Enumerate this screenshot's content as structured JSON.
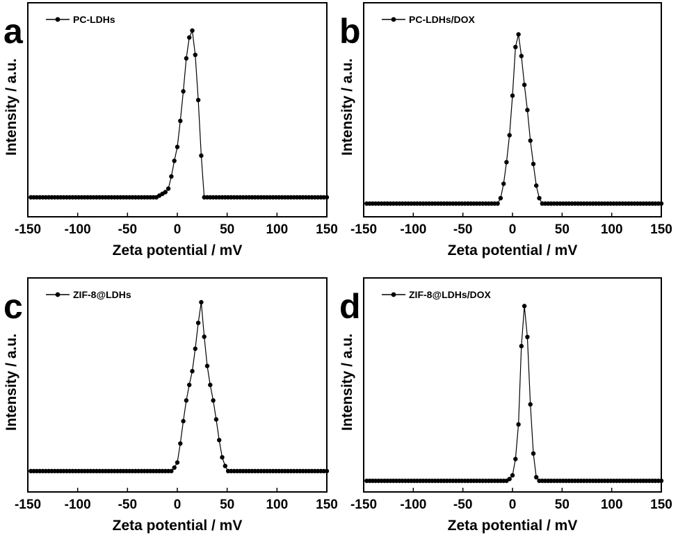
{
  "chart_data": [
    {
      "panel": "a",
      "type": "line",
      "xlabel": "Zeta potential / mV",
      "ylabel": "Intensity / a.u.",
      "xlim": [
        -150,
        150
      ],
      "xticks": [
        "-150",
        "-100",
        "-50",
        "0",
        "50",
        "100",
        "150"
      ],
      "legend_placement": "top-left",
      "series": [
        {
          "name": "PC-LDHs",
          "x": [
            -147,
            -144,
            -141,
            -138,
            -135,
            -132,
            -129,
            -126,
            -123,
            -120,
            -117,
            -114,
            -111,
            -108,
            -105,
            -102,
            -99,
            -96,
            -93,
            -90,
            -87,
            -84,
            -81,
            -78,
            -75,
            -72,
            -69,
            -66,
            -63,
            -60,
            -57,
            -54,
            -51,
            -48,
            -45,
            -42,
            -39,
            -36,
            -33,
            -30,
            -27,
            -24,
            -21,
            -18,
            -15,
            -12,
            -9,
            -6,
            -3,
            0,
            3,
            6,
            9,
            12,
            15,
            18,
            21,
            24,
            27,
            30,
            33,
            36,
            39,
            42,
            45,
            48,
            51,
            54,
            57,
            60,
            63,
            66,
            69,
            72,
            75,
            78,
            81,
            84,
            87,
            90,
            93,
            96,
            99,
            102,
            105,
            108,
            111,
            114,
            117,
            120,
            123,
            126,
            129,
            132,
            135,
            138,
            141,
            144,
            147,
            150
          ],
          "y": [
            0,
            0,
            0,
            0,
            0,
            0,
            0,
            0,
            0,
            0,
            0,
            0,
            0,
            0,
            0,
            0,
            0,
            0,
            0,
            0,
            0,
            0,
            0,
            0,
            0,
            0,
            0,
            0,
            0,
            0,
            0,
            0,
            0,
            0,
            0,
            0,
            0,
            0,
            0,
            0,
            0,
            0,
            0,
            0.01,
            0.02,
            0.03,
            0.05,
            0.12,
            0.21,
            0.29,
            0.44,
            0.61,
            0.8,
            0.92,
            0.96,
            0.82,
            0.56,
            0.24,
            0,
            0,
            0,
            0,
            0,
            0,
            0,
            0,
            0,
            0,
            0,
            0,
            0,
            0,
            0,
            0,
            0,
            0,
            0,
            0,
            0,
            0,
            0,
            0,
            0,
            0,
            0,
            0,
            0,
            0,
            0,
            0,
            0,
            0,
            0,
            0,
            0,
            0,
            0,
            0,
            0,
            0
          ]
        }
      ]
    },
    {
      "panel": "b",
      "type": "line",
      "xlabel": "Zeta potential / mV",
      "ylabel": "Intensity / a.u.",
      "xlim": [
        -150,
        150
      ],
      "xticks": [
        "-150",
        "-100",
        "-50",
        "0",
        "50",
        "100",
        "150"
      ],
      "legend_placement": "top-left",
      "series": [
        {
          "name": "PC-LDHs/DOX",
          "x": [
            -147,
            -144,
            -141,
            -138,
            -135,
            -132,
            -129,
            -126,
            -123,
            -120,
            -117,
            -114,
            -111,
            -108,
            -105,
            -102,
            -99,
            -96,
            -93,
            -90,
            -87,
            -84,
            -81,
            -78,
            -75,
            -72,
            -69,
            -66,
            -63,
            -60,
            -57,
            -54,
            -51,
            -48,
            -45,
            -42,
            -39,
            -36,
            -33,
            -30,
            -27,
            -24,
            -21,
            -18,
            -15,
            -12,
            -9,
            -6,
            -3,
            0,
            3,
            6,
            9,
            12,
            15,
            18,
            21,
            24,
            27,
            30,
            33,
            36,
            39,
            42,
            45,
            48,
            51,
            54,
            57,
            60,
            63,
            66,
            69,
            72,
            75,
            78,
            81,
            84,
            87,
            90,
            93,
            96,
            99,
            102,
            105,
            108,
            111,
            114,
            117,
            120,
            123,
            126,
            129,
            132,
            135,
            138,
            141,
            144,
            147,
            150
          ],
          "y": [
            0,
            0,
            0,
            0,
            0,
            0,
            0,
            0,
            0,
            0,
            0,
            0,
            0,
            0,
            0,
            0,
            0,
            0,
            0,
            0,
            0,
            0,
            0,
            0,
            0,
            0,
            0,
            0,
            0,
            0,
            0,
            0,
            0,
            0,
            0,
            0,
            0,
            0,
            0,
            0,
            0,
            0,
            0,
            0,
            0,
            0.03,
            0.11,
            0.23,
            0.38,
            0.6,
            0.87,
            0.94,
            0.82,
            0.66,
            0.52,
            0.35,
            0.22,
            0.1,
            0.03,
            0,
            0,
            0,
            0,
            0,
            0,
            0,
            0,
            0,
            0,
            0,
            0,
            0,
            0,
            0,
            0,
            0,
            0,
            0,
            0,
            0,
            0,
            0,
            0,
            0,
            0,
            0,
            0,
            0,
            0,
            0,
            0,
            0,
            0,
            0,
            0,
            0,
            0,
            0,
            0,
            0
          ]
        }
      ]
    },
    {
      "panel": "c",
      "type": "line",
      "xlabel": "Zeta potential / mV",
      "ylabel": "Intensity / a.u.",
      "xlim": [
        -150,
        150
      ],
      "xticks": [
        "-150",
        "-100",
        "-50",
        "0",
        "50",
        "100",
        "150"
      ],
      "legend_placement": "top-left",
      "series": [
        {
          "name": "ZIF-8@LDHs",
          "x": [
            -147,
            -144,
            -141,
            -138,
            -135,
            -132,
            -129,
            -126,
            -123,
            -120,
            -117,
            -114,
            -111,
            -108,
            -105,
            -102,
            -99,
            -96,
            -93,
            -90,
            -87,
            -84,
            -81,
            -78,
            -75,
            -72,
            -69,
            -66,
            -63,
            -60,
            -57,
            -54,
            -51,
            -48,
            -45,
            -42,
            -39,
            -36,
            -33,
            -30,
            -27,
            -24,
            -21,
            -18,
            -15,
            -12,
            -9,
            -6,
            -3,
            0,
            3,
            6,
            9,
            12,
            15,
            18,
            21,
            24,
            27,
            30,
            33,
            36,
            39,
            42,
            45,
            48,
            51,
            54,
            57,
            60,
            63,
            66,
            69,
            72,
            75,
            78,
            81,
            84,
            87,
            90,
            93,
            96,
            99,
            102,
            105,
            108,
            111,
            114,
            117,
            120,
            123,
            126,
            129,
            132,
            135,
            138,
            141,
            144,
            147,
            150
          ],
          "y": [
            0,
            0,
            0,
            0,
            0,
            0,
            0,
            0,
            0,
            0,
            0,
            0,
            0,
            0,
            0,
            0,
            0,
            0,
            0,
            0,
            0,
            0,
            0,
            0,
            0,
            0,
            0,
            0,
            0,
            0,
            0,
            0,
            0,
            0,
            0,
            0,
            0,
            0,
            0,
            0,
            0,
            0,
            0,
            0,
            0,
            0,
            0,
            0,
            0.02,
            0.05,
            0.16,
            0.29,
            0.41,
            0.5,
            0.58,
            0.71,
            0.86,
            0.98,
            0.78,
            0.61,
            0.5,
            0.41,
            0.3,
            0.18,
            0.08,
            0.03,
            0,
            0,
            0,
            0,
            0,
            0,
            0,
            0,
            0,
            0,
            0,
            0,
            0,
            0,
            0,
            0,
            0,
            0,
            0,
            0,
            0,
            0,
            0,
            0,
            0,
            0,
            0,
            0,
            0,
            0,
            0,
            0,
            0,
            0
          ]
        }
      ]
    },
    {
      "panel": "d",
      "type": "line",
      "xlabel": "Zeta potential / mV",
      "ylabel": "Intensity / a.u.",
      "xlim": [
        -150,
        150
      ],
      "xticks": [
        "-150",
        "-100",
        "-50",
        "0",
        "50",
        "100",
        "150"
      ],
      "legend_placement": "top-left",
      "series": [
        {
          "name": "ZIF-8@LDHs/DOX",
          "x": [
            -147,
            -144,
            -141,
            -138,
            -135,
            -132,
            -129,
            -126,
            -123,
            -120,
            -117,
            -114,
            -111,
            -108,
            -105,
            -102,
            -99,
            -96,
            -93,
            -90,
            -87,
            -84,
            -81,
            -78,
            -75,
            -72,
            -69,
            -66,
            -63,
            -60,
            -57,
            -54,
            -51,
            -48,
            -45,
            -42,
            -39,
            -36,
            -33,
            -30,
            -27,
            -24,
            -21,
            -18,
            -15,
            -12,
            -9,
            -6,
            -3,
            0,
            3,
            6,
            9,
            12,
            15,
            18,
            21,
            24,
            27,
            30,
            33,
            36,
            39,
            42,
            45,
            48,
            51,
            54,
            57,
            60,
            63,
            66,
            69,
            72,
            75,
            78,
            81,
            84,
            87,
            90,
            93,
            96,
            99,
            102,
            105,
            108,
            111,
            114,
            117,
            120,
            123,
            126,
            129,
            132,
            135,
            138,
            141,
            144,
            147,
            150
          ],
          "y": [
            0,
            0,
            0,
            0,
            0,
            0,
            0,
            0,
            0,
            0,
            0,
            0,
            0,
            0,
            0,
            0,
            0,
            0,
            0,
            0,
            0,
            0,
            0,
            0,
            0,
            0,
            0,
            0,
            0,
            0,
            0,
            0,
            0,
            0,
            0,
            0,
            0,
            0,
            0,
            0,
            0,
            0,
            0,
            0,
            0,
            0,
            0,
            0,
            0.01,
            0.03,
            0.12,
            0.31,
            0.74,
            0.96,
            0.79,
            0.42,
            0.15,
            0.02,
            0,
            0,
            0,
            0,
            0,
            0,
            0,
            0,
            0,
            0,
            0,
            0,
            0,
            0,
            0,
            0,
            0,
            0,
            0,
            0,
            0,
            0,
            0,
            0,
            0,
            0,
            0,
            0,
            0,
            0,
            0,
            0,
            0,
            0,
            0,
            0,
            0,
            0,
            0,
            0,
            0,
            0
          ]
        }
      ]
    }
  ]
}
